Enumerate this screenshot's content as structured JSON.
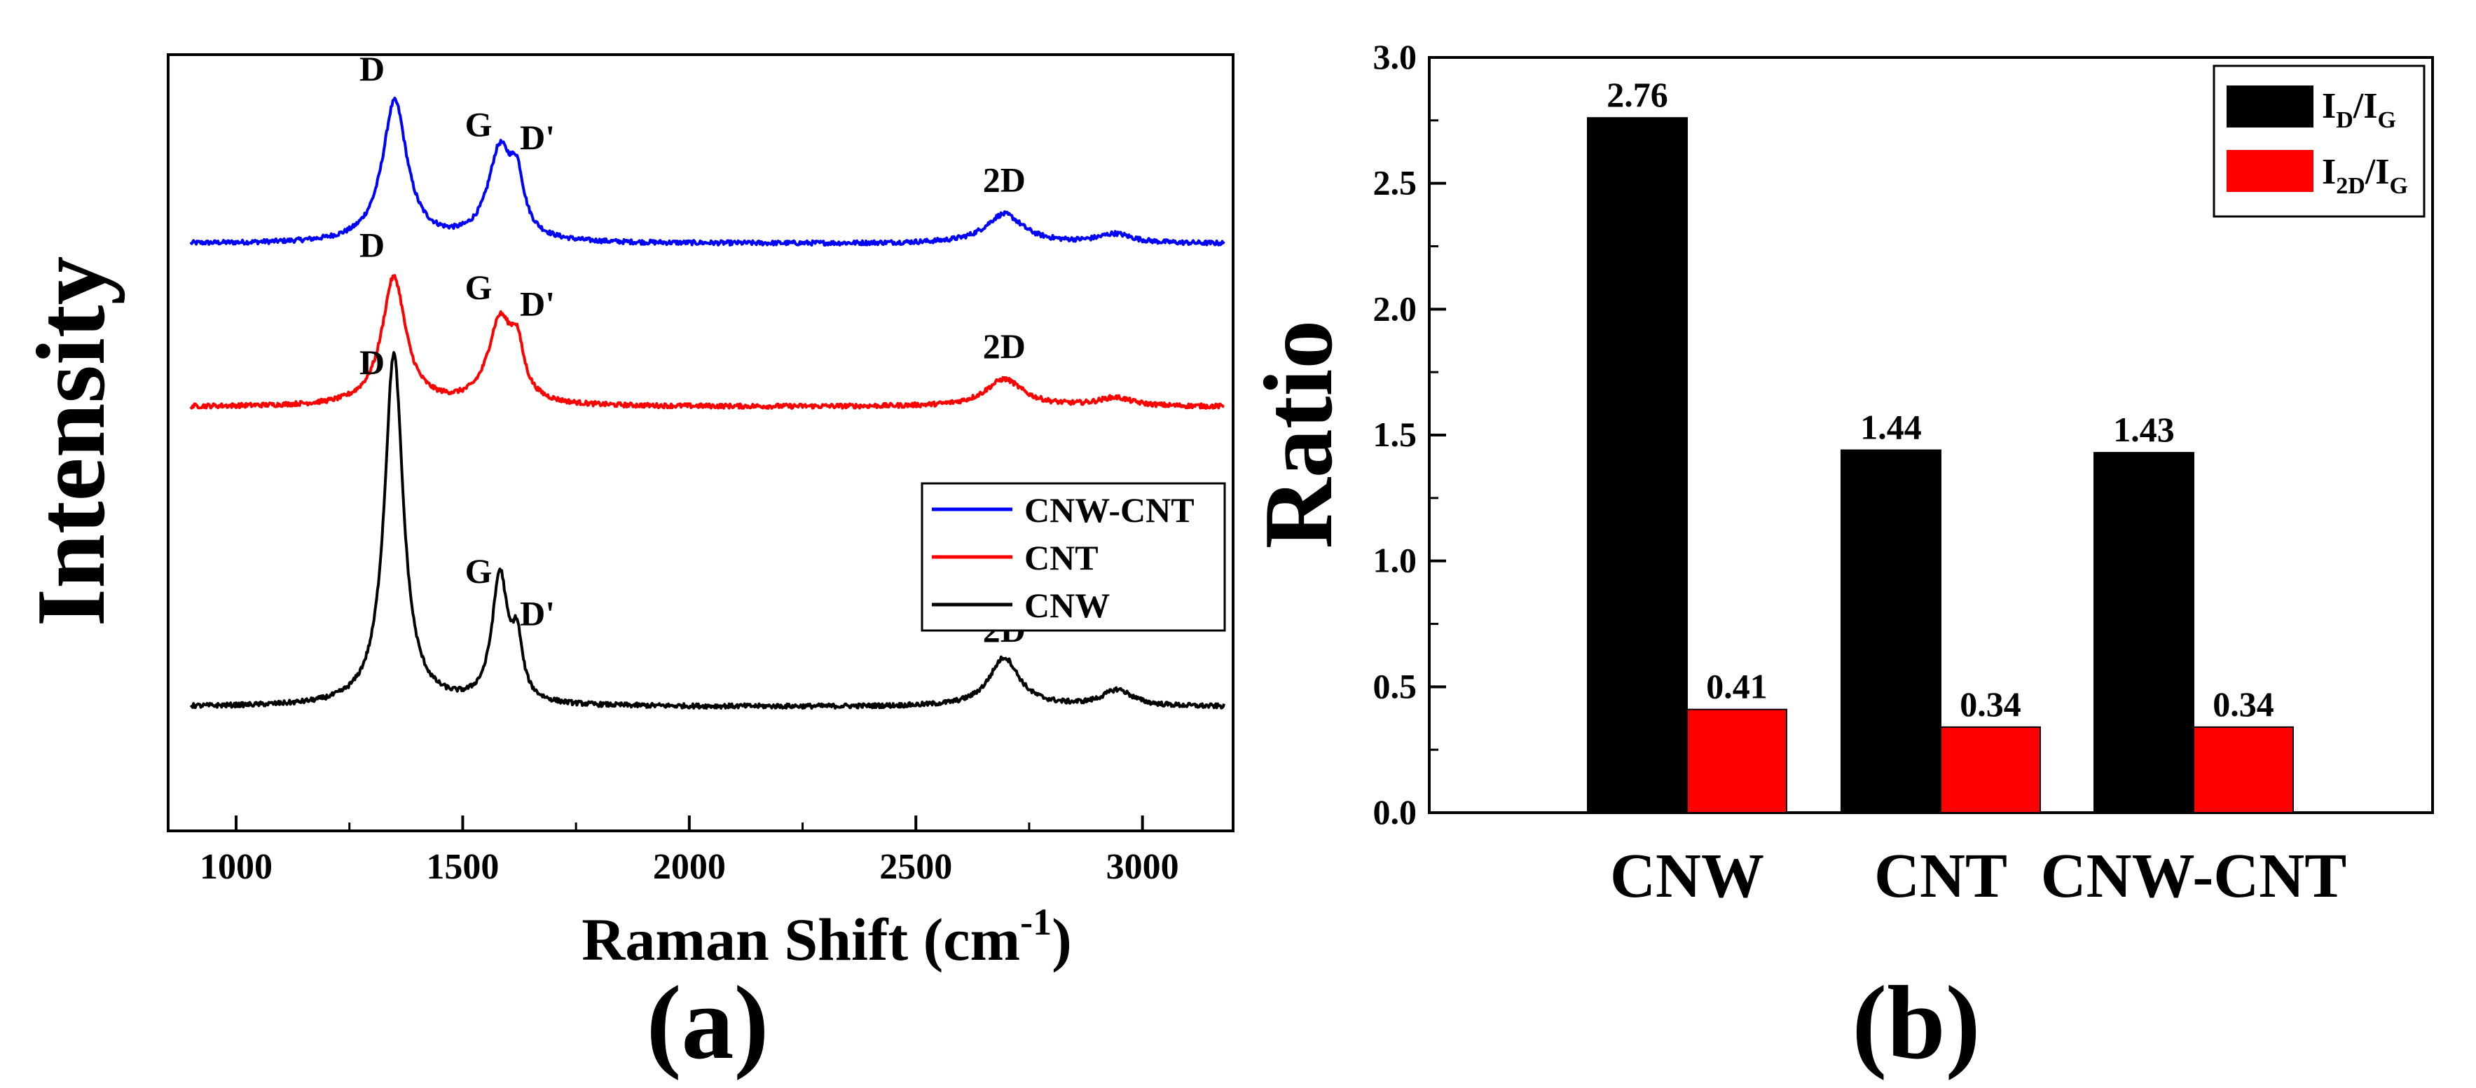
{
  "chart_data": [
    {
      "type": "line",
      "panel_label": "(a)",
      "xlabel": "Raman Shift (cm",
      "xlabel_sup": "-1",
      "xlabel_close": ")",
      "ylabel": "Intensity",
      "xlim": [
        850,
        3200
      ],
      "xticks": [
        "1000",
        "1500",
        "2000",
        "2500",
        "3000"
      ],
      "ylim": [
        -1.9,
        10.0
      ],
      "yticks_shown": false,
      "grid": false,
      "legend_position": "right",
      "series": [
        {
          "name": "CNW-CNT",
          "color": "#0000ff",
          "offset": 7.1,
          "peaks": [
            {
              "center": 1350,
              "height": 2.17,
              "width": 33
            },
            {
              "center": 1582,
              "height": 1.37,
              "width": 32
            },
            {
              "center": 1620,
              "height": 0.75,
              "width": 18
            },
            {
              "center": 2695,
              "height": 0.45,
              "width": 50
            },
            {
              "center": 2940,
              "height": 0.14,
              "width": 45
            }
          ],
          "labels": [
            {
              "text": "D",
              "x": 1300,
              "y": 9.6
            },
            {
              "text": "G",
              "x": 1535,
              "y": 8.75
            },
            {
              "text": "D'",
              "x": 1665,
              "y": 8.55
            },
            {
              "text": "2D",
              "x": 2695,
              "y": 7.9
            }
          ]
        },
        {
          "name": "CNT",
          "color": "#ff0000",
          "offset": 4.6,
          "peaks": [
            {
              "center": 1348,
              "height": 1.97,
              "width": 32
            },
            {
              "center": 1582,
              "height": 1.26,
              "width": 32
            },
            {
              "center": 1620,
              "height": 0.7,
              "width": 18
            },
            {
              "center": 2695,
              "height": 0.42,
              "width": 50
            },
            {
              "center": 2940,
              "height": 0.13,
              "width": 45
            }
          ],
          "labels": [
            {
              "text": "D",
              "x": 1300,
              "y": 6.9
            },
            {
              "text": "G",
              "x": 1535,
              "y": 6.25
            },
            {
              "text": "D'",
              "x": 1665,
              "y": 6.0
            },
            {
              "text": "2D",
              "x": 2695,
              "y": 5.35
            }
          ]
        },
        {
          "name": "CNW",
          "color": "#000000",
          "offset": 0.0,
          "peaks": [
            {
              "center": 1348,
              "height": 5.4,
              "width": 25
            },
            {
              "center": 1582,
              "height": 1.95,
              "width": 21
            },
            {
              "center": 1620,
              "height": 0.85,
              "width": 14
            },
            {
              "center": 2695,
              "height": 0.75,
              "width": 40
            },
            {
              "center": 2945,
              "height": 0.25,
              "width": 40
            }
          ],
          "labels": [
            {
              "text": "D",
              "x": 1300,
              "y": 5.1
            },
            {
              "text": "G",
              "x": 1535,
              "y": 1.9
            },
            {
              "text": "D'",
              "x": 1665,
              "y": 1.25
            },
            {
              "text": "2D",
              "x": 2695,
              "y": 1.0
            }
          ]
        }
      ]
    },
    {
      "type": "bar",
      "panel_label": "(b)",
      "xlabel": "",
      "ylabel": "Ratio",
      "ylim": [
        0.0,
        3.0
      ],
      "yticks": [
        "0.0",
        "0.5",
        "1.0",
        "1.5",
        "2.0",
        "2.5",
        "3.0"
      ],
      "categories": [
        "CNW",
        "CNT",
        "CNW-CNT"
      ],
      "grid": false,
      "legend_position": "top-right",
      "series": [
        {
          "name_base": "I",
          "name_sub": "D",
          "name_mid": "/I",
          "name_sub2": "G",
          "color": "#000000",
          "values": [
            2.76,
            1.44,
            1.43
          ],
          "value_labels": [
            "2.76",
            "1.44",
            "1.43"
          ]
        },
        {
          "name_base": "I",
          "name_sub": "2D",
          "name_mid": "/I",
          "name_sub2": "G",
          "color": "#ff0000",
          "values": [
            0.41,
            0.34,
            0.34
          ],
          "value_labels": [
            "0.41",
            "0.34",
            "0.34"
          ]
        }
      ]
    }
  ]
}
